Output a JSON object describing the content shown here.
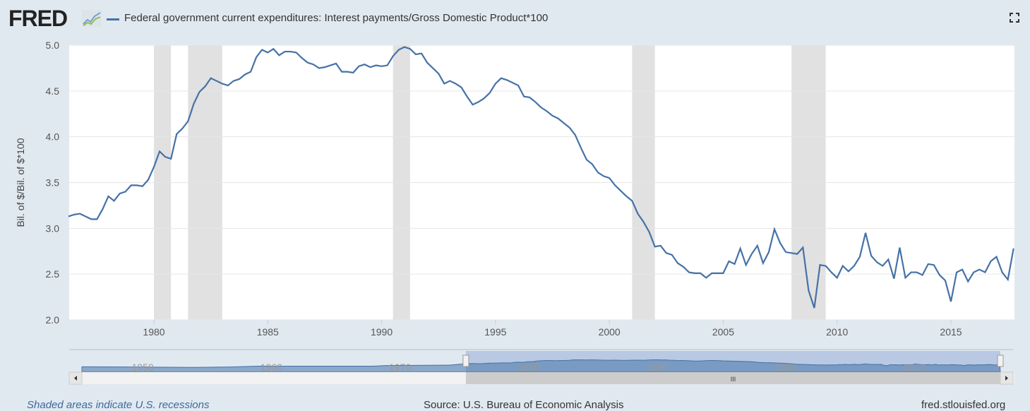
{
  "header": {
    "logo": "FRED",
    "series_title": "Federal government current expenditures: Interest payments/Gross Domestic Product*100",
    "fullscreen_icon": "fullscreen-icon"
  },
  "footer": {
    "recession_note": "Shaded areas indicate U.S. recessions",
    "source": "Source: U.S. Bureau of Economic Analysis",
    "site": "fred.stlouisfed.org"
  },
  "colors": {
    "line": "#4572a7",
    "recession": "#e1e1e1",
    "background": "#e1e9f0"
  },
  "navigator": {
    "tick_labels": [
      "1950",
      "1960",
      "1970",
      "1980",
      "1990",
      "2000",
      "2010"
    ],
    "thumb_label": "III"
  },
  "chart_data": {
    "type": "line",
    "title": "",
    "xlabel": "",
    "ylabel": "Bil. of $/Bil. of $*100",
    "ylim": [
      2.0,
      5.0
    ],
    "xlim": [
      "1976Q2",
      "2017Q4"
    ],
    "grid": true,
    "y_ticks": [
      "2.0",
      "2.5",
      "3.0",
      "3.5",
      "4.0",
      "4.5",
      "5.0"
    ],
    "x_ticks": [
      "1980",
      "1985",
      "1990",
      "1995",
      "2000",
      "2005",
      "2010",
      "2015"
    ],
    "recessions": [
      [
        "1980Q1",
        "1980Q3"
      ],
      [
        "1981Q3",
        "1982Q4"
      ],
      [
        "1990Q3",
        "1991Q1"
      ],
      [
        "2001Q1",
        "2001Q4"
      ],
      [
        "2008Q1",
        "2009Q2"
      ]
    ],
    "start": "1976Q2",
    "frequency": "quarterly",
    "values": [
      3.13,
      3.15,
      3.16,
      3.13,
      3.1,
      3.1,
      3.21,
      3.35,
      3.3,
      3.38,
      3.4,
      3.47,
      3.47,
      3.46,
      3.53,
      3.67,
      3.84,
      3.78,
      3.76,
      4.03,
      4.09,
      4.17,
      4.36,
      4.49,
      4.55,
      4.64,
      4.61,
      4.58,
      4.56,
      4.61,
      4.63,
      4.68,
      4.71,
      4.87,
      4.95,
      4.92,
      4.96,
      4.89,
      4.93,
      4.93,
      4.92,
      4.86,
      4.81,
      4.79,
      4.75,
      4.76,
      4.78,
      4.8,
      4.71,
      4.71,
      4.7,
      4.77,
      4.79,
      4.76,
      4.78,
      4.77,
      4.78,
      4.88,
      4.95,
      4.98,
      4.96,
      4.9,
      4.91,
      4.81,
      4.75,
      4.69,
      4.58,
      4.61,
      4.58,
      4.54,
      4.44,
      4.35,
      4.38,
      4.42,
      4.48,
      4.58,
      4.64,
      4.62,
      4.59,
      4.56,
      4.44,
      4.43,
      4.38,
      4.32,
      4.28,
      4.23,
      4.2,
      4.15,
      4.1,
      4.02,
      3.88,
      3.75,
      3.7,
      3.61,
      3.57,
      3.55,
      3.47,
      3.41,
      3.35,
      3.3,
      3.16,
      3.07,
      2.96,
      2.8,
      2.81,
      2.73,
      2.71,
      2.62,
      2.58,
      2.52,
      2.51,
      2.51,
      2.46,
      2.51,
      2.51,
      2.51,
      2.64,
      2.61,
      2.78,
      2.6,
      2.72,
      2.81,
      2.62,
      2.74,
      2.99,
      2.84,
      2.74,
      2.73,
      2.72,
      2.79,
      2.32,
      2.13,
      2.6,
      2.59,
      2.52,
      2.46,
      2.59,
      2.53,
      2.59,
      2.69,
      2.95,
      2.7,
      2.63,
      2.59,
      2.66,
      2.45,
      2.79,
      2.46,
      2.52,
      2.52,
      2.49,
      2.61,
      2.6,
      2.49,
      2.43,
      2.2,
      2.52,
      2.55,
      2.42,
      2.52,
      2.55,
      2.52,
      2.64,
      2.69,
      2.52,
      2.44,
      2.78
    ]
  }
}
